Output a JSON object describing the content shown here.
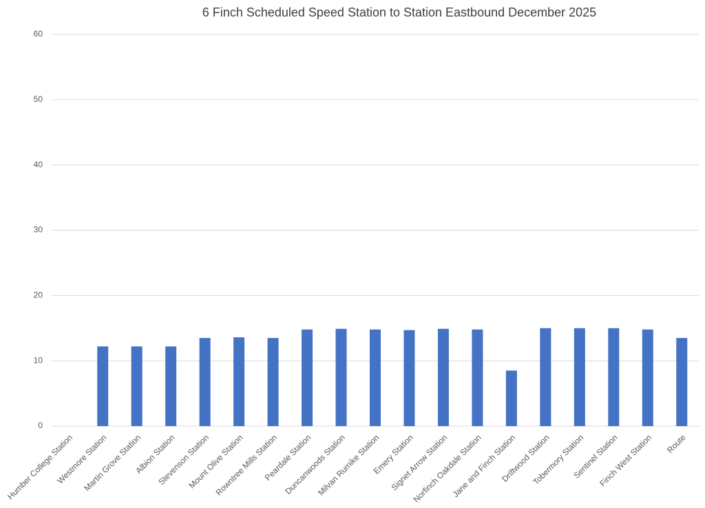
{
  "chart_data": {
    "type": "bar",
    "title": "6 Finch Scheduled Speed Station to Station Eastbound December 2025",
    "categories": [
      "Humber College Station",
      "Westmore Station",
      "Martin Grove Station",
      "Albion Station",
      "Stevenson Station",
      "Mount Olive Station",
      "Rowntree Mills Station",
      "Peardale Station",
      "Duncanwoods Station",
      "Milvan Rumike Station",
      "Emery Station",
      "Signet Arrow Station",
      "Norfinch Oakdale Station",
      "Jane and Finch Station",
      "Driftwood Station",
      "Tobermory Station",
      "Sentinel Station",
      "Finch West Station",
      "Route"
    ],
    "values": [
      null,
      12.2,
      12.2,
      12.2,
      13.5,
      13.6,
      13.5,
      14.8,
      14.9,
      14.8,
      14.7,
      14.9,
      14.8,
      8.5,
      15.0,
      15.0,
      15.0,
      14.8,
      13.5
    ],
    "color": "#4472c4",
    "ylim": [
      0,
      60
    ],
    "yticks": [
      0,
      10,
      20,
      30,
      40,
      50,
      60
    ],
    "grid": true
  }
}
